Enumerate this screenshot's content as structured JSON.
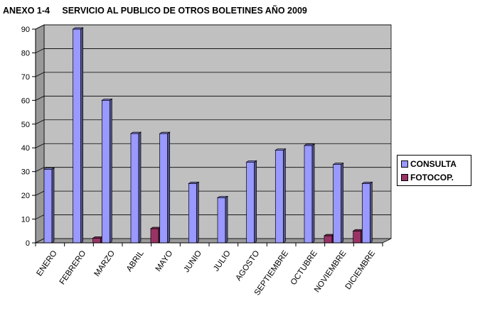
{
  "chart_data": {
    "type": "bar",
    "title": "ANEXO 1-4     SERVICIO AL PUBLICO DE OTROS BOLETINES AÑO 2009",
    "categories": [
      "ENERO",
      "FEBRERO",
      "MARZO",
      "ABRIL",
      "MAYO",
      "JUNIO",
      "JULIO",
      "AGOSTO",
      "SEPTIEMBRE",
      "OCTUBRE",
      "NOVIEMBRE",
      "DICIEMBRE"
    ],
    "series": [
      {
        "name": "CONSULTA",
        "color": "#9999ff",
        "values": [
          31,
          90,
          60,
          46,
          46,
          25,
          19,
          34,
          39,
          41,
          33,
          25
        ]
      },
      {
        "name": "FOTOCOP.",
        "color": "#993366",
        "values": [
          0,
          2,
          0,
          6,
          0,
          0,
          0,
          0,
          0,
          3,
          5,
          0
        ]
      }
    ],
    "yticks": [
      0,
      10,
      20,
      30,
      40,
      50,
      60,
      70,
      80,
      90
    ],
    "ylim": [
      0,
      90
    ],
    "grid": true,
    "legend_position": "right",
    "background_color": "#c0c0c0"
  }
}
